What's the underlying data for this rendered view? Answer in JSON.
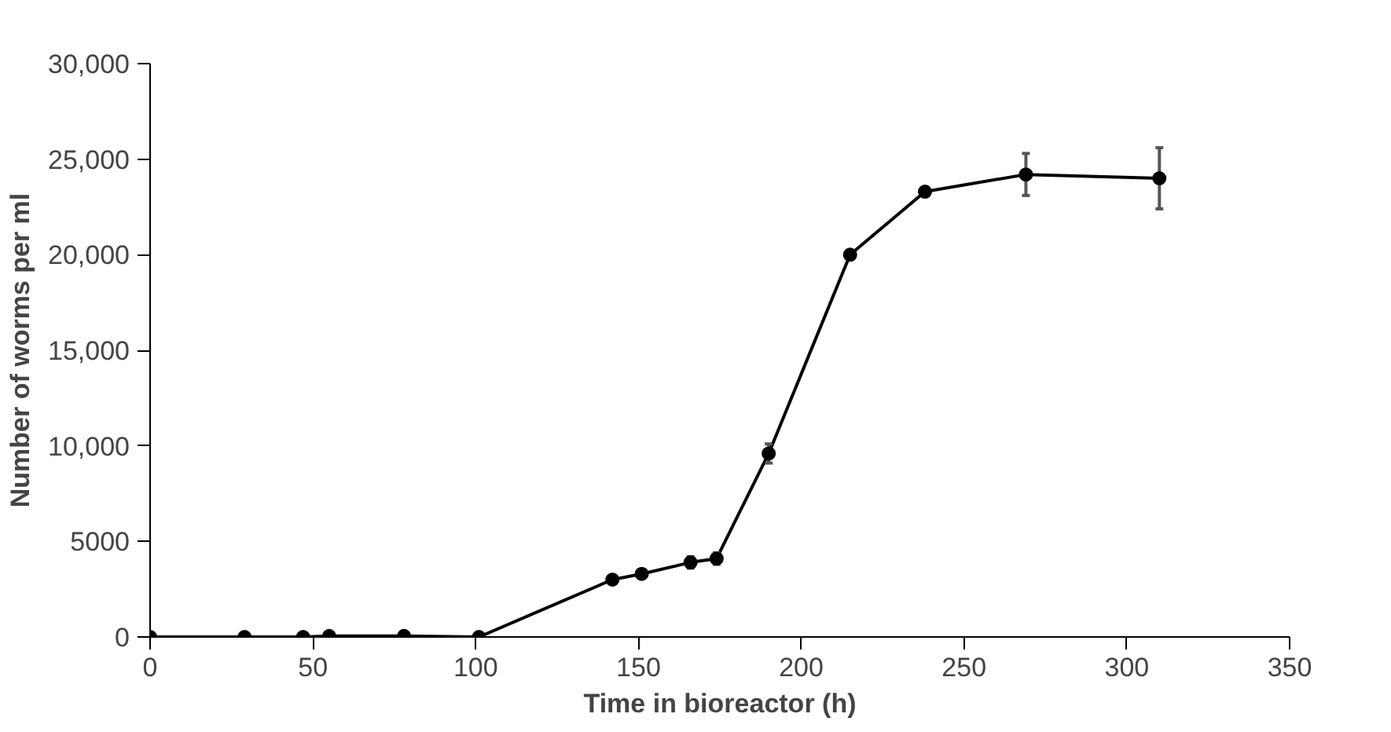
{
  "chart_data": {
    "type": "line",
    "xlabel": "Time in bioreactor (h)",
    "ylabel": "Number of worms per ml",
    "x": [
      0,
      29,
      47,
      55,
      78,
      101,
      142,
      151,
      166,
      174,
      190,
      215,
      238,
      269,
      310
    ],
    "series": [
      {
        "color": "#000000",
        "values": [
          0,
          0,
          0,
          50,
          50,
          0,
          3000,
          3300,
          3900,
          4100,
          9600,
          20000,
          23300,
          24200,
          24000
        ],
        "errors": [
          null,
          null,
          null,
          null,
          null,
          null,
          200,
          200,
          300,
          300,
          500,
          null,
          200,
          1100,
          1600
        ]
      }
    ],
    "xlim": [
      0,
      350
    ],
    "xticks": [
      0,
      50,
      100,
      150,
      200,
      250,
      300,
      350
    ],
    "ylim": [
      0,
      30000
    ],
    "yticks": [
      {
        "value": 0,
        "label": "0"
      },
      {
        "value": 5000,
        "label": "5000"
      },
      {
        "value": 10000,
        "label": "10,000"
      },
      {
        "value": 15000,
        "label": "15,000"
      },
      {
        "value": 20000,
        "label": "20,000"
      },
      {
        "value": 25000,
        "label": "25,000"
      },
      {
        "value": 30000,
        "label": "30,000"
      }
    ],
    "grid": false,
    "marker": "circle",
    "line_style": "solid"
  }
}
